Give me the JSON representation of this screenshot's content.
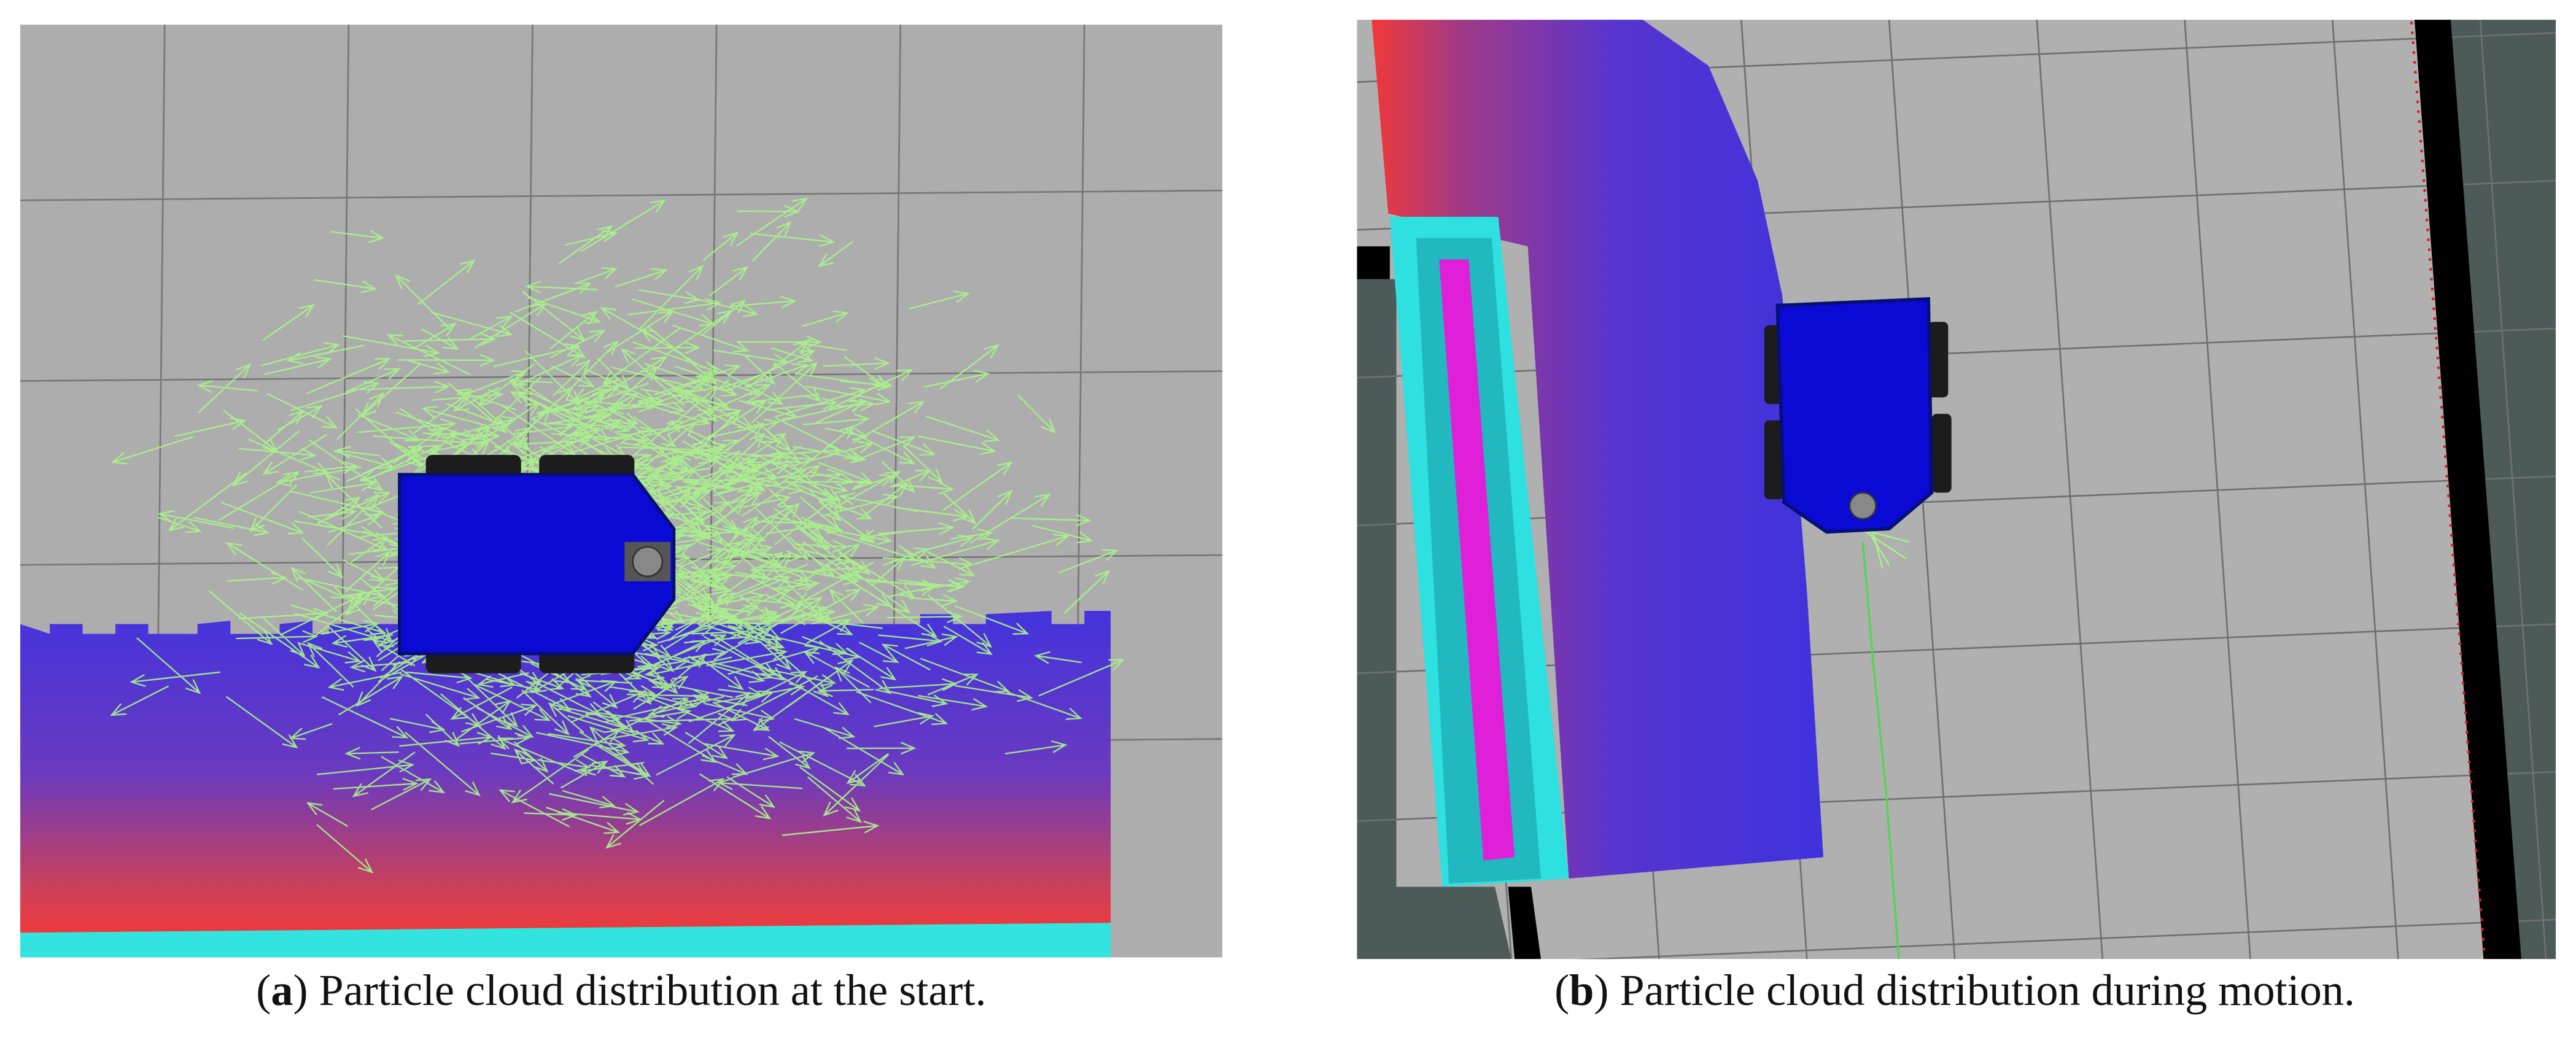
{
  "panels": [
    {
      "caption": [
        "(",
        "a",
        ") Particle cloud distribution at the start."
      ]
    },
    {
      "caption": [
        "(",
        "b",
        ") Particle cloud distribution during motion."
      ]
    }
  ]
}
